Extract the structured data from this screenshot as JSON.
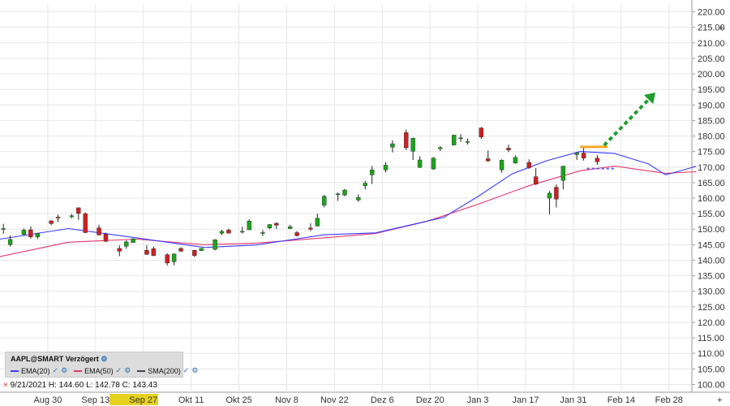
{
  "chart_data": {
    "type": "candlestick",
    "symbol_label": "AAPL@SMART Verzögert",
    "y_axis": {
      "min": 97.5,
      "max": 222.5,
      "ticks": [
        "220.00",
        "215.00",
        "210.00",
        "205.00",
        "200.00",
        "195.00",
        "190.00",
        "185.00",
        "180.00",
        "175.00",
        "170.00",
        "165.00",
        "160.00",
        "155.00",
        "150.00",
        "145.00",
        "140.00",
        "135.00",
        "130.00",
        "125.00",
        "120.00",
        "115.00",
        "110.00",
        "105.00",
        "100.00"
      ]
    },
    "x_axis": {
      "labels": [
        "Aug 30",
        "Sep 13",
        "Sep 27",
        "Okt 11",
        "Okt 25",
        "Nov 8",
        "Nov 22",
        "Dez 6",
        "Dez 20",
        "Jan 3",
        "Jan 17",
        "Jan 31",
        "Feb 14",
        "Feb 28"
      ],
      "start_date": "2021-08-16",
      "end_date": "2022-03-06"
    },
    "candles": [
      [
        "2021-08-17",
        150.2,
        151.7,
        148.5,
        150.2
      ],
      [
        "2021-08-19",
        145.0,
        148.0,
        144.4,
        146.7
      ],
      [
        "2021-08-23",
        148.3,
        150.2,
        147.9,
        149.7
      ],
      [
        "2021-08-25",
        149.8,
        150.9,
        147.0,
        147.5
      ],
      [
        "2021-08-27",
        147.5,
        148.8,
        146.8,
        148.6
      ],
      [
        "2021-08-31",
        152.7,
        152.8,
        151.3,
        151.8
      ],
      [
        "2021-09-02",
        153.9,
        154.7,
        152.3,
        153.6
      ],
      [
        "2021-09-06",
        154.0,
        154.9,
        153.4,
        154.3
      ],
      [
        "2021-09-08",
        156.9,
        157.0,
        153.0,
        155.1
      ],
      [
        "2021-09-10",
        155.0,
        155.5,
        148.7,
        148.9
      ],
      [
        "2021-09-14",
        150.4,
        151.4,
        148.1,
        148.1
      ],
      [
        "2021-09-16",
        148.4,
        148.9,
        145.8,
        146.1
      ],
      [
        "2021-09-20",
        143.8,
        144.8,
        141.3,
        142.9
      ],
      [
        "2021-09-22",
        144.5,
        146.4,
        143.7,
        145.9
      ],
      [
        "2021-09-24",
        145.7,
        147.1,
        145.6,
        146.9
      ],
      [
        "2021-09-28",
        143.2,
        144.8,
        141.7,
        141.9
      ],
      [
        "2021-09-30",
        143.7,
        144.4,
        141.3,
        141.5
      ],
      [
        "2021-10-04",
        141.8,
        142.2,
        138.3,
        139.1
      ],
      [
        "2021-10-06",
        139.5,
        142.2,
        138.4,
        142.0
      ],
      [
        "2021-10-08",
        143.8,
        144.2,
        142.7,
        142.9
      ],
      [
        "2021-10-12",
        143.2,
        143.3,
        141.0,
        141.5
      ],
      [
        "2021-10-14",
        143.1,
        143.9,
        143.0,
        143.8
      ],
      [
        "2021-10-18",
        143.5,
        146.8,
        143.2,
        146.6
      ],
      [
        "2021-10-20",
        148.7,
        149.8,
        148.1,
        149.3
      ],
      [
        "2021-10-22",
        149.7,
        150.2,
        148.6,
        148.7
      ],
      [
        "2021-10-26",
        149.3,
        150.8,
        148.6,
        149.3
      ],
      [
        "2021-10-28",
        149.8,
        153.2,
        149.7,
        152.6
      ],
      [
        "2021-11-01",
        148.9,
        149.7,
        147.8,
        148.9
      ],
      [
        "2021-11-03",
        150.4,
        151.6,
        150.0,
        151.5
      ],
      [
        "2021-11-05",
        151.9,
        152.2,
        150.1,
        151.3
      ],
      [
        "2021-11-09",
        150.2,
        151.4,
        150.1,
        150.8
      ],
      [
        "2021-11-11",
        148.9,
        149.4,
        147.7,
        147.9
      ],
      [
        "2021-11-15",
        150.4,
        151.9,
        149.4,
        150.0
      ],
      [
        "2021-11-17",
        151.0,
        155.0,
        150.9,
        153.5
      ],
      [
        "2021-11-19",
        157.7,
        161.0,
        157.0,
        160.6
      ],
      [
        "2021-11-23",
        161.1,
        161.8,
        159.1,
        161.4
      ],
      [
        "2021-11-25",
        161.0,
        163.0,
        160.6,
        162.6
      ],
      [
        "2021-11-29",
        159.4,
        161.2,
        158.8,
        160.2
      ],
      [
        "2021-12-01",
        164.0,
        165.5,
        162.8,
        164.8
      ],
      [
        "2021-12-03",
        167.5,
        170.3,
        164.5,
        169.1
      ],
      [
        "2021-12-07",
        169.1,
        171.6,
        168.3,
        170.6
      ],
      [
        "2021-12-09",
        176.4,
        178.6,
        174.7,
        177.5
      ],
      [
        "2021-12-13",
        181.1,
        182.1,
        175.5,
        176.2
      ],
      [
        "2021-12-15",
        175.1,
        179.5,
        172.3,
        179.3
      ],
      [
        "2021-12-17",
        169.9,
        173.5,
        169.7,
        172.3
      ],
      [
        "2021-12-21",
        169.4,
        173.2,
        169.1,
        172.9
      ],
      [
        "2021-12-23",
        175.9,
        176.8,
        175.2,
        176.3
      ],
      [
        "2021-12-27",
        177.1,
        180.4,
        177.0,
        180.3
      ],
      [
        "2021-12-29",
        179.3,
        180.6,
        178.1,
        179.4
      ],
      [
        "2021-12-31",
        178.1,
        179.2,
        177.3,
        178.2
      ],
      [
        "2022-01-04",
        182.6,
        182.9,
        179.1,
        179.7
      ],
      [
        "2022-01-06",
        172.7,
        175.3,
        171.6,
        172.0
      ],
      [
        "2022-01-10",
        169.1,
        172.5,
        168.2,
        172.2
      ],
      [
        "2022-01-12",
        176.1,
        177.2,
        174.8,
        175.5
      ],
      [
        "2022-01-14",
        171.3,
        173.8,
        171.1,
        173.1
      ],
      [
        "2022-01-18",
        171.5,
        172.5,
        169.4,
        169.8
      ],
      [
        "2022-01-20",
        166.9,
        169.7,
        164.2,
        164.5
      ],
      [
        "2022-01-24",
        160.0,
        162.3,
        154.7,
        161.6
      ],
      [
        "2022-01-26",
        163.5,
        164.4,
        157.0,
        159.7
      ],
      [
        "2022-01-28",
        165.7,
        170.4,
        162.8,
        170.3
      ],
      [
        "2022-02-01",
        174.0,
        174.8,
        172.3,
        174.6
      ],
      [
        "2022-02-03",
        174.5,
        176.2,
        172.1,
        172.9
      ],
      [
        "2022-02-07",
        172.9,
        173.9,
        170.7,
        171.7
      ]
    ],
    "ema20": [
      [
        0,
        146.8
      ],
      [
        20,
        150.2
      ],
      [
        40,
        147.2
      ],
      [
        60,
        144.1
      ],
      [
        75,
        144.9
      ],
      [
        95,
        148.2
      ],
      [
        110,
        148.8
      ],
      [
        130,
        153.8
      ],
      [
        140,
        160.5
      ],
      [
        150,
        167.8
      ],
      [
        160,
        172.0
      ],
      [
        170,
        175.0
      ],
      [
        180,
        174.4
      ],
      [
        190,
        171.0
      ],
      [
        195,
        167.5
      ],
      [
        200,
        169.0
      ],
      [
        204,
        170.3
      ]
    ],
    "ema50": [
      [
        0,
        141.2
      ],
      [
        20,
        145.8
      ],
      [
        40,
        146.8
      ],
      [
        60,
        145.0
      ],
      [
        75,
        145.5
      ],
      [
        95,
        147.2
      ],
      [
        110,
        148.6
      ],
      [
        125,
        152.5
      ],
      [
        140,
        158.0
      ],
      [
        155,
        164.0
      ],
      [
        170,
        168.8
      ],
      [
        180,
        170.3
      ],
      [
        195,
        168.0
      ],
      [
        204,
        168.5
      ]
    ],
    "colors": {
      "up": "#1aa51a",
      "down": "#d11f1f",
      "ema20": "#3a3aff",
      "ema50": "#e8366b",
      "resistance": "#f5a623",
      "projection": "#1e9e2e",
      "support": "#5a5aff"
    },
    "annotations": {
      "resistance_line": {
        "from": "2022-02-02",
        "to": "2022-02-10",
        "price": 176.5
      },
      "support_line": {
        "from": "2022-02-04",
        "to": "2022-02-12",
        "price": 169.5
      },
      "arrow_start": {
        "date": "2022-02-09",
        "price": 177.0
      },
      "arrow_end": {
        "date": "2022-02-24",
        "price": 194.0
      }
    }
  },
  "legend": {
    "ema20_label": "EMA(20)",
    "ema50_label": "EMA(50)",
    "sma200_label": "SMA(200)",
    "check_mark": "✓"
  },
  "info_line": {
    "marker": "×",
    "date": "9/21/2021",
    "high": "H: 144.60",
    "low": "L: 142.78",
    "close": "C: 143.43"
  },
  "crosshair_date_label": "9/21/2021",
  "y_axis_plus": "+",
  "x_axis_plus": "+"
}
